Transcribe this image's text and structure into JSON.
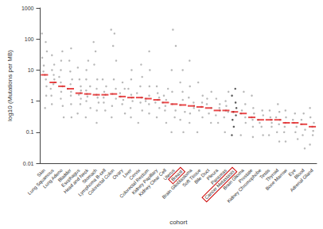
{
  "chart_data": {
    "type": "scatter",
    "log": "y",
    "grid": false,
    "x_label": "cohort",
    "y_label": "log10 (Mutations per MB)",
    "ylim": [
      0.01,
      1000
    ],
    "yticks": [
      0.01,
      0.1,
      1,
      10,
      100,
      1000
    ],
    "categories": [
      "Skin",
      "Lung Squamous",
      "Lung Adeno",
      "Bladder",
      "Esophagus",
      "Head and Neck",
      "Stomach",
      "Lymphoma B-cell",
      "Colorectal Colon",
      "Ovary",
      "Liver",
      "Cervix",
      "Colorectal Rectum",
      "Kidney Papillary",
      "Kidney Clear Cell",
      "Uterus",
      "Breast",
      "Brain Glioblastoma",
      "Soft Tissue",
      "Bile Duct",
      "Pleura",
      "Pancreas",
      "Cancer Metastasis",
      "Brain Glioma",
      "Prostate",
      "Kidney Chromophobe",
      "Testis",
      "Thyroid",
      "Bone Marrow",
      "Eye",
      "Blood",
      "Adrenal Gland"
    ],
    "highlighted": [
      "Breast",
      "Cancer Metastasis"
    ],
    "series": [
      {
        "type": "scatter",
        "colors": [
          "#9a9a9a",
          "#9a9a9a",
          "#9a9a9a",
          "#9a9a9a",
          "#9a9a9a",
          "#9a9a9a",
          "#9a9a9a",
          "#9a9a9a",
          "#9a9a9a",
          "#9a9a9a",
          "#9a9a9a",
          "#9a9a9a",
          "#9a9a9a",
          "#9a9a9a",
          "#9a9a9a",
          "#9a9a9a",
          "#9a9a9a",
          "#9a9a9a",
          "#9a9a9a",
          "#9a9a9a",
          "#9a9a9a",
          "#9a9a9a",
          "#111111",
          "#9a9a9a",
          "#9a9a9a",
          "#9a9a9a",
          "#9a9a9a",
          "#9a9a9a",
          "#9a9a9a",
          "#9a9a9a",
          "#9a9a9a",
          "#9a9a9a"
        ],
        "values": [
          [
            0.6,
            1.5,
            3,
            5,
            7,
            9,
            14,
            25,
            40,
            80,
            150
          ],
          [
            0.8,
            1.5,
            2.5,
            3.5,
            4,
            5,
            7,
            10,
            15,
            30
          ],
          [
            0.3,
            0.7,
            1.2,
            2,
            3,
            4,
            6,
            10,
            20,
            40
          ],
          [
            0.3,
            0.8,
            1.5,
            2,
            2.5,
            3.5,
            5,
            9,
            20,
            50
          ],
          [
            0.4,
            0.8,
            1.2,
            1.6,
            1.8,
            2.2,
            3,
            5,
            12
          ],
          [
            0.3,
            0.6,
            1,
            1.4,
            1.7,
            2.2,
            3,
            5,
            10,
            20
          ],
          [
            0.2,
            0.5,
            0.9,
            1.3,
            1.6,
            2.5,
            5,
            15,
            40,
            80
          ],
          [
            0.5,
            0.9,
            1.3,
            1.6,
            2,
            3,
            5
          ],
          [
            0.3,
            0.7,
            1.2,
            1.7,
            2.5,
            5,
            20,
            60,
            150,
            200
          ],
          [
            0.4,
            0.8,
            1.1,
            1.4,
            1.8,
            2.5,
            4
          ],
          [
            0.3,
            0.6,
            1,
            1.3,
            1.6,
            2.5,
            5,
            10
          ],
          [
            0.2,
            0.5,
            0.9,
            1.3,
            1.8,
            3,
            6,
            15
          ],
          [
            0.4,
            0.8,
            1,
            1.2,
            1.5,
            3,
            10,
            40
          ],
          [
            0.3,
            0.6,
            0.9,
            1.1,
            1.3,
            1.8,
            3
          ],
          [
            0.2,
            0.5,
            0.7,
            0.9,
            1.1,
            1.5,
            2.5
          ],
          [
            0.1,
            0.3,
            0.5,
            0.8,
            2,
            10,
            60,
            200
          ],
          [
            0.1,
            0.25,
            0.45,
            0.75,
            1.1,
            2,
            4,
            10
          ],
          [
            0.2,
            0.4,
            0.6,
            0.7,
            0.9,
            1.3,
            3,
            20
          ],
          [
            0.1,
            0.3,
            0.5,
            0.65,
            0.9,
            1.5,
            4
          ],
          [
            0.2,
            0.4,
            0.6,
            0.8,
            1.2,
            2
          ],
          [
            0.2,
            0.35,
            0.5,
            0.6,
            0.8,
            1.2
          ],
          [
            0.1,
            0.3,
            0.45,
            0.5,
            0.7,
            1,
            2
          ],
          [
            0.08,
            0.15,
            0.25,
            0.35,
            0.45,
            0.6,
            0.9,
            1.5,
            2.5
          ],
          [
            0.08,
            0.2,
            0.3,
            0.4,
            0.5,
            0.8,
            2
          ],
          [
            0.07,
            0.15,
            0.25,
            0.3,
            0.4,
            0.6,
            1.5
          ],
          [
            0.08,
            0.15,
            0.2,
            0.25,
            0.35,
            0.5
          ],
          [
            0.08,
            0.15,
            0.2,
            0.25,
            0.3,
            0.5
          ],
          [
            0.05,
            0.1,
            0.18,
            0.25,
            0.3,
            0.45,
            0.8
          ],
          [
            0.05,
            0.1,
            0.15,
            0.2,
            0.3,
            0.5
          ],
          [
            0.06,
            0.1,
            0.15,
            0.2,
            0.25,
            0.4
          ],
          [
            0.03,
            0.08,
            0.12,
            0.18,
            0.25,
            0.4
          ],
          [
            0.04,
            0.08,
            0.11,
            0.15,
            0.2,
            0.3,
            0.6
          ]
        ]
      },
      {
        "type": "median",
        "color": "#e41a1c",
        "values": [
          7,
          4,
          3,
          2.5,
          1.8,
          1.7,
          1.6,
          1.6,
          1.7,
          1.4,
          1.3,
          1.3,
          1.2,
          1.1,
          0.9,
          0.8,
          0.75,
          0.7,
          0.65,
          0.6,
          0.5,
          0.5,
          0.45,
          0.4,
          0.3,
          0.25,
          0.25,
          0.25,
          0.2,
          0.2,
          0.18,
          0.15
        ]
      }
    ]
  }
}
